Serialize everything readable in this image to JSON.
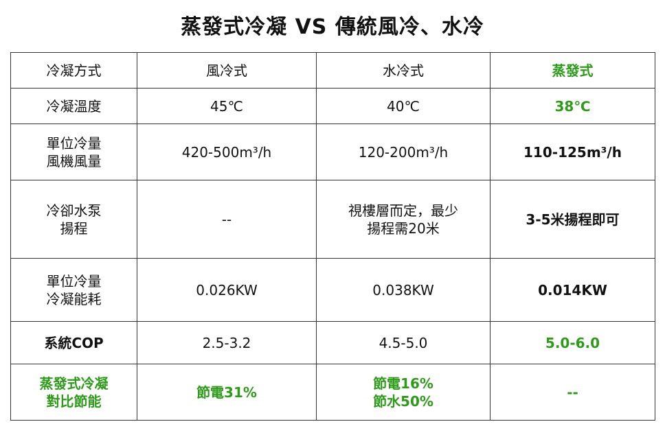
{
  "title": "蒸發式冷凝 VS 傳統風冷、水冷",
  "table": {
    "rows": [
      [
        "冷凝方式",
        "風冷式",
        "水冷式",
        "蒸發式"
      ],
      [
        "冷凝溫度",
        "45℃",
        "40℃",
        "38℃"
      ],
      [
        "單位冷量\n風機風量",
        "420-500m³/h",
        "120-200m³/h",
        "110-125m³/h"
      ],
      [
        "冷卻水泵\n揚程",
        "--",
        "視樓層而定，最少\n揚程需20米",
        "3-5米揚程即可"
      ],
      [
        "單位冷量\n冷凝能耗",
        "0.026KW",
        "0.038KW",
        "0.014KW"
      ],
      [
        "系統COP",
        "2.5-3.2",
        "4.5-5.0",
        "5.0-6.0"
      ],
      [
        "蒸發式冷凝\n對比節能",
        "節電31%",
        "節電16%\n節水50%",
        "--"
      ]
    ]
  }
}
